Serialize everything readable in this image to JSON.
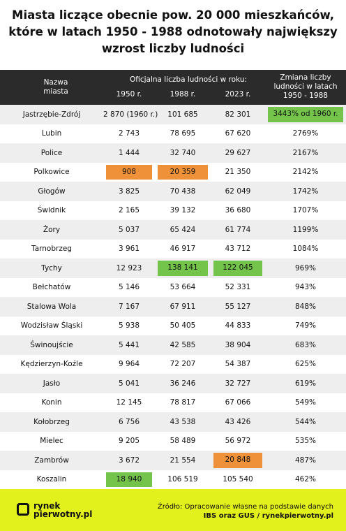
{
  "header": {
    "title_lines": [
      "Miasta liczące obecnie pow. 20 000 mieszkańców,",
      "które w latach 1950 - 1988 odnotowały największy",
      "wzrost liczby ludności"
    ]
  },
  "table": {
    "columns": {
      "name": "Nazwa miasta",
      "group": "Oficjalna liczba ludności w roku:",
      "years": [
        "1950 r.",
        "1988 r.",
        "2023 r."
      ],
      "change": "Zmiana liczby ludności w latach 1950 - 1988"
    },
    "rows": [
      [
        "Jastrzębie-Zdrój",
        "2 870 (1960 r.)",
        "101 685",
        "82 301",
        "3443% od 1960 r."
      ],
      [
        "Lubin",
        "2 743",
        "78 695",
        "67 620",
        "2769%"
      ],
      [
        "Police",
        "1 444",
        "32 740",
        "29 627",
        "2167%"
      ],
      [
        "Polkowice",
        "908",
        "20 359",
        "21 350",
        "2142%"
      ],
      [
        "Głogów",
        "3 825",
        "70 438",
        "62 049",
        "1742%"
      ],
      [
        "Świdnik",
        "2 165",
        "39 132",
        "36 680",
        "1707%"
      ],
      [
        "Żory",
        "5 037",
        "65 424",
        "61 774",
        "1199%"
      ],
      [
        "Tarnobrzeg",
        "3 961",
        "46 917",
        "43 712",
        "1084%"
      ],
      [
        "Tychy",
        "12 923",
        "138 141",
        "122 045",
        "969%"
      ],
      [
        "Bełchatów",
        "5 146",
        "53 664",
        "52 331",
        "943%"
      ],
      [
        "Stalowa Wola",
        "7 167",
        "67 911",
        "55 127",
        "848%"
      ],
      [
        "Wodzisław Śląski",
        "5 938",
        "50 405",
        "44 833",
        "749%"
      ],
      [
        "Świnoujście",
        "5 441",
        "42 585",
        "38 904",
        "683%"
      ],
      [
        "Kędzierzyn-Koźle",
        "9 964",
        "72 207",
        "54 387",
        "625%"
      ],
      [
        "Jasło",
        "5 041",
        "36 246",
        "32 727",
        "619%"
      ],
      [
        "Konin",
        "12 145",
        "78 817",
        "67 066",
        "549%"
      ],
      [
        "Kołobrzeg",
        "6 756",
        "43 538",
        "43 426",
        "544%"
      ],
      [
        "Mielec",
        "9 205",
        "58 489",
        "56 972",
        "535%"
      ],
      [
        "Zambrów",
        "3 672",
        "21 554",
        "20 848",
        "487%"
      ],
      [
        "Koszalin",
        "18 940",
        "106 519",
        "105 540",
        "462%"
      ]
    ]
  },
  "footer": {
    "logo_top": "rynek",
    "logo_bottom": "pierwotny.pl",
    "source_line1": "Źródło: Opracowanie własne na podstawie danych",
    "source_line2": "IBS oraz GUS / rynekpierwotny.pl"
  }
}
